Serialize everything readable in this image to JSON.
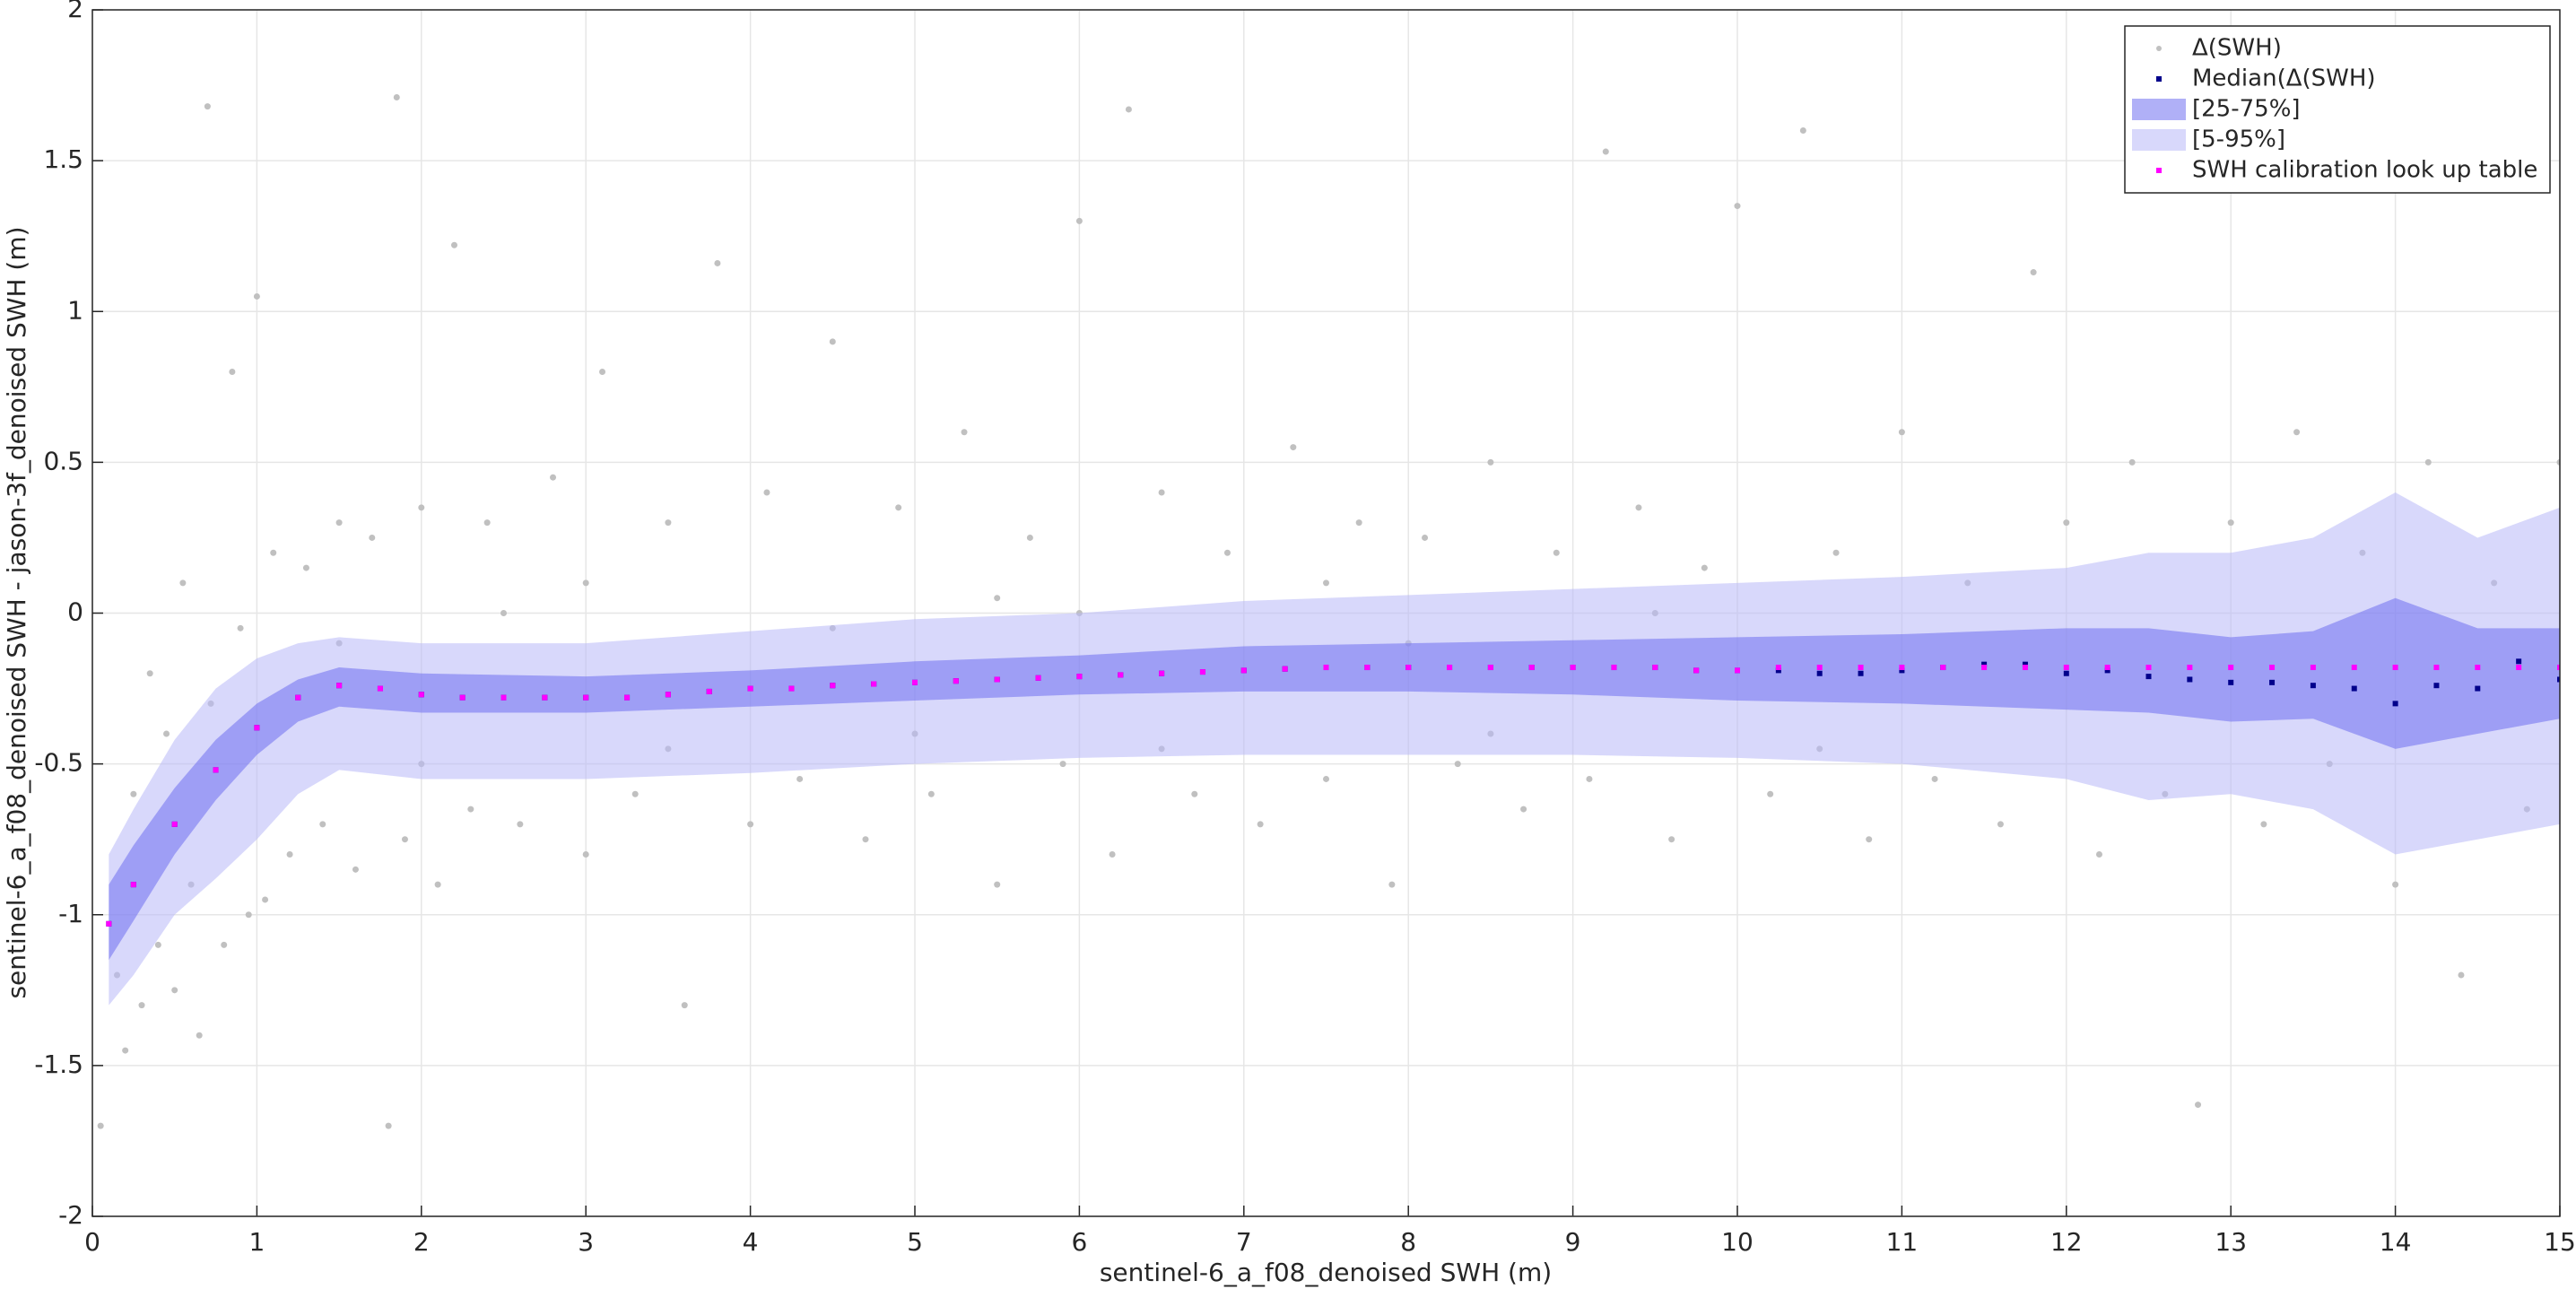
{
  "chart_data": {
    "type": "scatter",
    "xlabel": "sentinel-6_a_f08_denoised SWH (m)",
    "ylabel": "sentinel-6_a_f08_denoised SWH - jason-3f_denoised SWH (m)",
    "xlim": [
      0,
      15
    ],
    "ylim": [
      -2,
      2
    ],
    "xticks": [
      0,
      1,
      2,
      3,
      4,
      5,
      6,
      7,
      8,
      9,
      10,
      11,
      12,
      13,
      14,
      15
    ],
    "yticks": [
      -2,
      -1.5,
      -1,
      -0.5,
      0,
      0.5,
      1,
      1.5,
      2
    ],
    "grid": true,
    "legend": "upper right",
    "series": [
      {
        "name": "Δ(SWH)",
        "type": "scatter",
        "color": "#c0c0c0",
        "x": [
          0.05,
          0.15,
          0.2,
          0.25,
          0.3,
          0.35,
          0.4,
          0.45,
          0.5,
          0.55,
          0.6,
          0.65,
          0.7,
          0.72,
          0.8,
          0.85,
          0.9,
          0.95,
          1.0,
          1.05,
          1.1,
          1.2,
          1.3,
          1.4,
          1.5,
          1.6,
          1.7,
          1.8,
          1.85,
          1.9,
          2.0,
          2.1,
          2.2,
          2.3,
          2.4,
          2.6,
          2.8,
          3.0,
          3.1,
          3.3,
          3.5,
          3.6,
          3.8,
          4.0,
          4.1,
          4.3,
          4.5,
          4.7,
          4.9,
          5.1,
          5.3,
          5.5,
          5.7,
          5.9,
          6.0,
          6.2,
          6.3,
          6.5,
          6.7,
          6.9,
          7.1,
          7.3,
          7.5,
          7.7,
          7.9,
          8.1,
          8.3,
          8.5,
          8.7,
          8.9,
          9.1,
          9.2,
          9.4,
          9.6,
          9.8,
          10.0,
          10.2,
          10.4,
          10.6,
          10.8,
          11.0,
          11.2,
          11.4,
          11.6,
          11.8,
          12.0,
          12.2,
          12.4,
          12.6,
          12.8,
          13.0,
          13.2,
          13.4,
          13.6,
          13.8,
          14.0,
          14.2,
          14.4,
          14.6,
          14.8,
          15.0,
          1.5,
          2.5,
          3.5,
          4.5,
          5.5,
          6.5,
          7.5,
          8.5,
          9.5,
          10.5,
          2.0,
          3.0,
          5.0,
          6.0,
          8.0
        ],
        "y": [
          -1.7,
          -1.2,
          -1.45,
          -0.6,
          -1.3,
          -0.2,
          -1.1,
          -0.4,
          -1.25,
          0.1,
          -0.9,
          -1.4,
          1.68,
          -0.3,
          -1.1,
          0.8,
          -0.05,
          -1.0,
          1.05,
          -0.95,
          0.2,
          -0.8,
          0.15,
          -0.7,
          0.3,
          -0.85,
          0.25,
          -1.7,
          1.71,
          -0.75,
          0.35,
          -0.9,
          1.22,
          -0.65,
          0.3,
          -0.7,
          0.45,
          -0.8,
          0.8,
          -0.6,
          0.3,
          -1.3,
          1.16,
          -0.7,
          0.4,
          -0.55,
          0.9,
          -0.75,
          0.35,
          -0.6,
          0.6,
          -0.9,
          0.25,
          -0.5,
          1.3,
          -0.8,
          1.67,
          0.4,
          -0.6,
          0.2,
          -0.7,
          0.55,
          -0.55,
          0.3,
          -0.9,
          0.25,
          -0.5,
          0.5,
          -0.65,
          0.2,
          -0.55,
          1.53,
          0.35,
          -0.75,
          0.15,
          1.35,
          -0.6,
          1.6,
          0.2,
          -0.75,
          0.6,
          -0.55,
          0.1,
          -0.7,
          1.13,
          0.3,
          -0.8,
          0.5,
          -0.6,
          -1.63,
          0.3,
          -0.7,
          0.6,
          -0.5,
          0.2,
          -0.9,
          0.5,
          -1.2,
          0.1,
          -0.65,
          0.5,
          -0.1,
          0.0,
          -0.45,
          -0.05,
          0.05,
          -0.45,
          0.1,
          -0.4,
          0.0,
          -0.45,
          -0.5,
          0.1,
          -0.4,
          0.0,
          -0.1
        ]
      },
      {
        "name": "Median(Δ(SWH)",
        "type": "dots",
        "color": "#00008b",
        "x": [
          0.1,
          0.25,
          0.5,
          0.75,
          1,
          1.25,
          1.5,
          1.75,
          2,
          2.25,
          2.5,
          2.75,
          3,
          3.25,
          3.5,
          3.75,
          4,
          4.25,
          4.5,
          4.75,
          5,
          5.25,
          5.5,
          5.75,
          6,
          6.25,
          6.5,
          6.75,
          7,
          7.25,
          7.5,
          7.75,
          8,
          8.25,
          8.5,
          8.75,
          9,
          9.25,
          9.5,
          9.75,
          10,
          10.25,
          10.5,
          10.75,
          11,
          11.25,
          11.5,
          11.75,
          12,
          12.25,
          12.5,
          12.75,
          13,
          13.25,
          13.5,
          13.75,
          14,
          14.25,
          14.5,
          14.75,
          15
        ],
        "y": [
          -1.03,
          -0.9,
          -0.7,
          -0.52,
          -0.38,
          -0.28,
          -0.24,
          -0.25,
          -0.27,
          -0.28,
          -0.28,
          -0.28,
          -0.28,
          -0.28,
          -0.27,
          -0.26,
          -0.25,
          -0.25,
          -0.24,
          -0.235,
          -0.23,
          -0.225,
          -0.22,
          -0.215,
          -0.21,
          -0.205,
          -0.2,
          -0.195,
          -0.19,
          -0.185,
          -0.18,
          -0.18,
          -0.18,
          -0.18,
          -0.18,
          -0.18,
          -0.18,
          -0.18,
          -0.18,
          -0.19,
          -0.19,
          -0.19,
          -0.2,
          -0.2,
          -0.19,
          -0.18,
          -0.17,
          -0.17,
          -0.2,
          -0.19,
          -0.21,
          -0.22,
          -0.23,
          -0.23,
          -0.24,
          -0.25,
          -0.3,
          -0.24,
          -0.25,
          -0.16,
          -0.22
        ]
      },
      {
        "name": "[25-75%]",
        "type": "band",
        "color": "#7070f0",
        "x": [
          0.1,
          0.25,
          0.5,
          0.75,
          1,
          1.25,
          1.5,
          2,
          3,
          4,
          5,
          6,
          7,
          8,
          9,
          10,
          11,
          12,
          12.5,
          13,
          13.5,
          14,
          14.5,
          15
        ],
        "lower": [
          -1.15,
          -1.02,
          -0.8,
          -0.62,
          -0.47,
          -0.36,
          -0.31,
          -0.33,
          -0.33,
          -0.31,
          -0.29,
          -0.27,
          -0.26,
          -0.26,
          -0.27,
          -0.29,
          -0.3,
          -0.32,
          -0.33,
          -0.36,
          -0.35,
          -0.45,
          -0.4,
          -0.35
        ],
        "upper": [
          -0.9,
          -0.77,
          -0.58,
          -0.42,
          -0.3,
          -0.22,
          -0.18,
          -0.2,
          -0.21,
          -0.19,
          -0.16,
          -0.14,
          -0.11,
          -0.1,
          -0.09,
          -0.08,
          -0.07,
          -0.05,
          -0.05,
          -0.08,
          -0.06,
          0.05,
          -0.05,
          -0.05
        ]
      },
      {
        "name": "[5-95%]",
        "type": "band",
        "color": "#b8b8f8",
        "x": [
          0.1,
          0.25,
          0.5,
          0.75,
          1,
          1.25,
          1.5,
          2,
          3,
          4,
          5,
          6,
          7,
          8,
          9,
          10,
          11,
          12,
          12.5,
          13,
          13.5,
          14,
          14.5,
          15
        ],
        "lower": [
          -1.3,
          -1.2,
          -1.0,
          -0.88,
          -0.75,
          -0.6,
          -0.52,
          -0.55,
          -0.55,
          -0.53,
          -0.5,
          -0.48,
          -0.47,
          -0.47,
          -0.47,
          -0.48,
          -0.5,
          -0.55,
          -0.62,
          -0.6,
          -0.65,
          -0.8,
          -0.75,
          -0.7
        ],
        "upper": [
          -0.8,
          -0.65,
          -0.42,
          -0.25,
          -0.15,
          -0.1,
          -0.08,
          -0.1,
          -0.1,
          -0.06,
          -0.02,
          0.0,
          0.04,
          0.06,
          0.08,
          0.1,
          0.12,
          0.15,
          0.2,
          0.2,
          0.25,
          0.4,
          0.25,
          0.35
        ]
      },
      {
        "name": "SWH calibration look up table",
        "type": "dots",
        "color": "#ff00ff",
        "x": [
          0.1,
          0.25,
          0.5,
          0.75,
          1,
          1.25,
          1.5,
          1.75,
          2,
          2.25,
          2.5,
          2.75,
          3,
          3.25,
          3.5,
          3.75,
          4,
          4.25,
          4.5,
          4.75,
          5,
          5.25,
          5.5,
          5.75,
          6,
          6.25,
          6.5,
          6.75,
          7,
          7.25,
          7.5,
          7.75,
          8,
          8.25,
          8.5,
          8.75,
          9,
          9.25,
          9.5,
          9.75,
          10,
          10.25,
          10.5,
          10.75,
          11,
          11.25,
          11.5,
          11.75,
          12,
          12.25,
          12.5,
          12.75,
          13,
          13.25,
          13.5,
          13.75,
          14,
          14.25,
          14.5,
          14.75,
          15
        ],
        "y": [
          -1.03,
          -0.9,
          -0.7,
          -0.52,
          -0.38,
          -0.28,
          -0.24,
          -0.25,
          -0.27,
          -0.28,
          -0.28,
          -0.28,
          -0.28,
          -0.28,
          -0.27,
          -0.26,
          -0.25,
          -0.25,
          -0.24,
          -0.235,
          -0.23,
          -0.225,
          -0.22,
          -0.215,
          -0.21,
          -0.205,
          -0.2,
          -0.195,
          -0.19,
          -0.185,
          -0.18,
          -0.18,
          -0.18,
          -0.18,
          -0.18,
          -0.18,
          -0.18,
          -0.18,
          -0.18,
          -0.19,
          -0.19,
          -0.18,
          -0.18,
          -0.18,
          -0.18,
          -0.18,
          -0.18,
          -0.18,
          -0.18,
          -0.18,
          -0.18,
          -0.18,
          -0.18,
          -0.18,
          -0.18,
          -0.18,
          -0.18,
          -0.18,
          -0.18,
          -0.18,
          -0.18
        ]
      }
    ]
  }
}
